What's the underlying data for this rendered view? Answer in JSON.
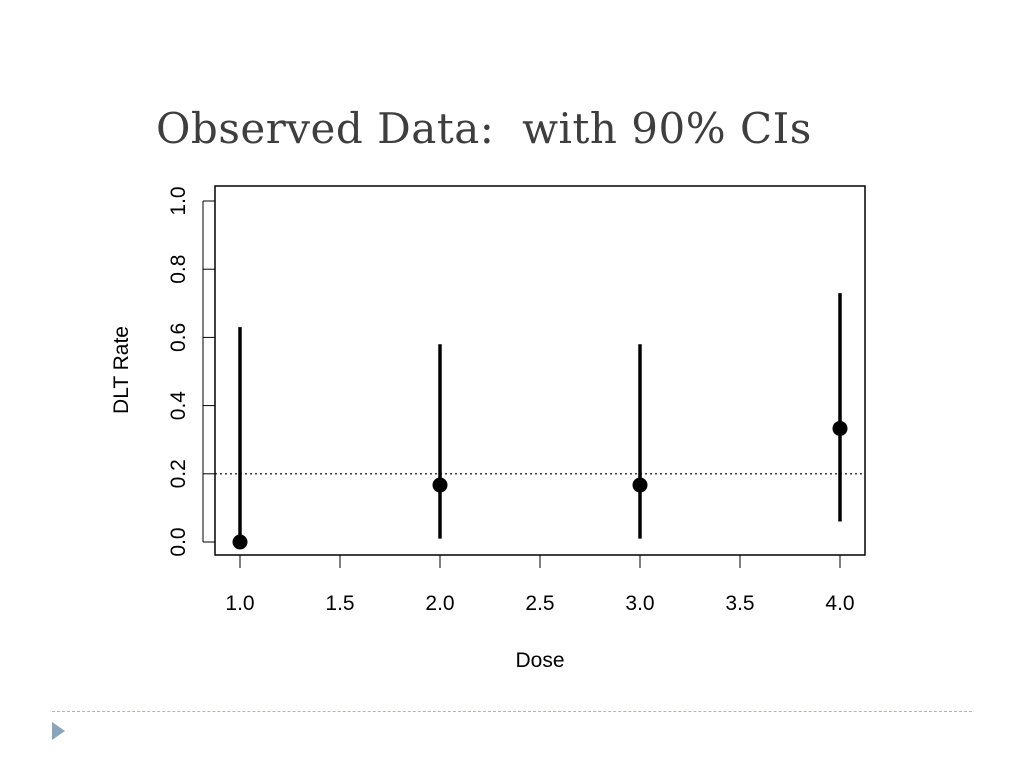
{
  "slide": {
    "title": "Observed Data:  with 90% CIs"
  },
  "chart_data": {
    "type": "scatter",
    "title": "",
    "xlabel": "Dose",
    "ylabel": "DLT Rate",
    "xlim": [
      1.0,
      4.0
    ],
    "ylim": [
      0.0,
      1.0
    ],
    "x_ticks": [
      "1.0",
      "1.5",
      "2.0",
      "2.5",
      "3.0",
      "3.5",
      "4.0"
    ],
    "y_ticks": [
      "0.0",
      "0.2",
      "0.4",
      "0.6",
      "0.8",
      "1.0"
    ],
    "reference_line": {
      "y": 0.2,
      "style": "dotted"
    },
    "points": [
      {
        "x": 1,
        "y": 0.0,
        "ci_low": 0.0,
        "ci_high": 0.63
      },
      {
        "x": 2,
        "y": 0.167,
        "ci_low": 0.01,
        "ci_high": 0.58
      },
      {
        "x": 3,
        "y": 0.167,
        "ci_low": 0.01,
        "ci_high": 0.58
      },
      {
        "x": 4,
        "y": 0.333,
        "ci_low": 0.06,
        "ci_high": 0.73
      }
    ],
    "grid": false,
    "legend": "none"
  },
  "colors": {
    "title": "#3e3e3e",
    "data": "#000000",
    "footer_rule": "#a8b8c8",
    "footer_arrow": "#8aa4bc"
  }
}
